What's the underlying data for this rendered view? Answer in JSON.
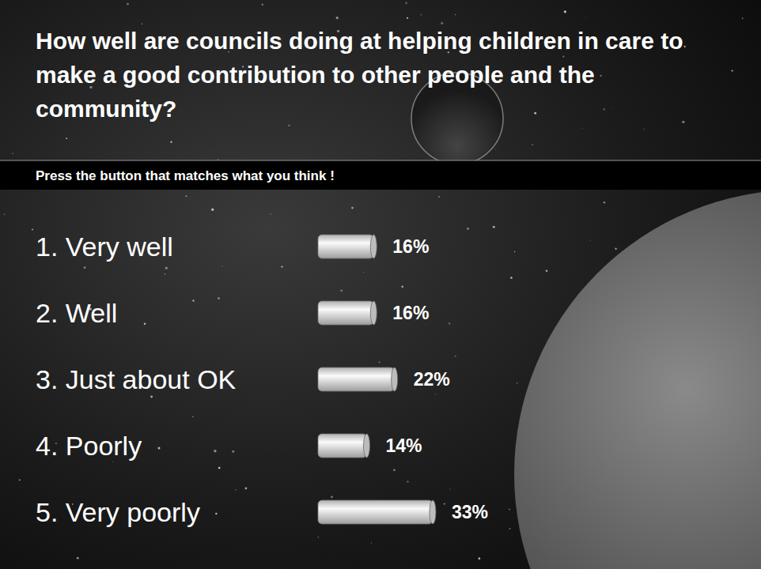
{
  "chart_data": {
    "type": "bar",
    "orientation": "horizontal",
    "title": "How well are councils doing at helping children in care to make a good contribution to other people and the community?",
    "subtitle": "Press the button that matches what you think !",
    "categories": [
      "1. Very well",
      "2. Well",
      "3. Just about OK",
      "4. Poorly",
      "5. Very poorly"
    ],
    "values": [
      16,
      16,
      22,
      14,
      33
    ],
    "value_labels": [
      "16%",
      "16%",
      "22%",
      "14%",
      "33%"
    ],
    "color": "#d9d9d9",
    "data_labels": true
  }
}
